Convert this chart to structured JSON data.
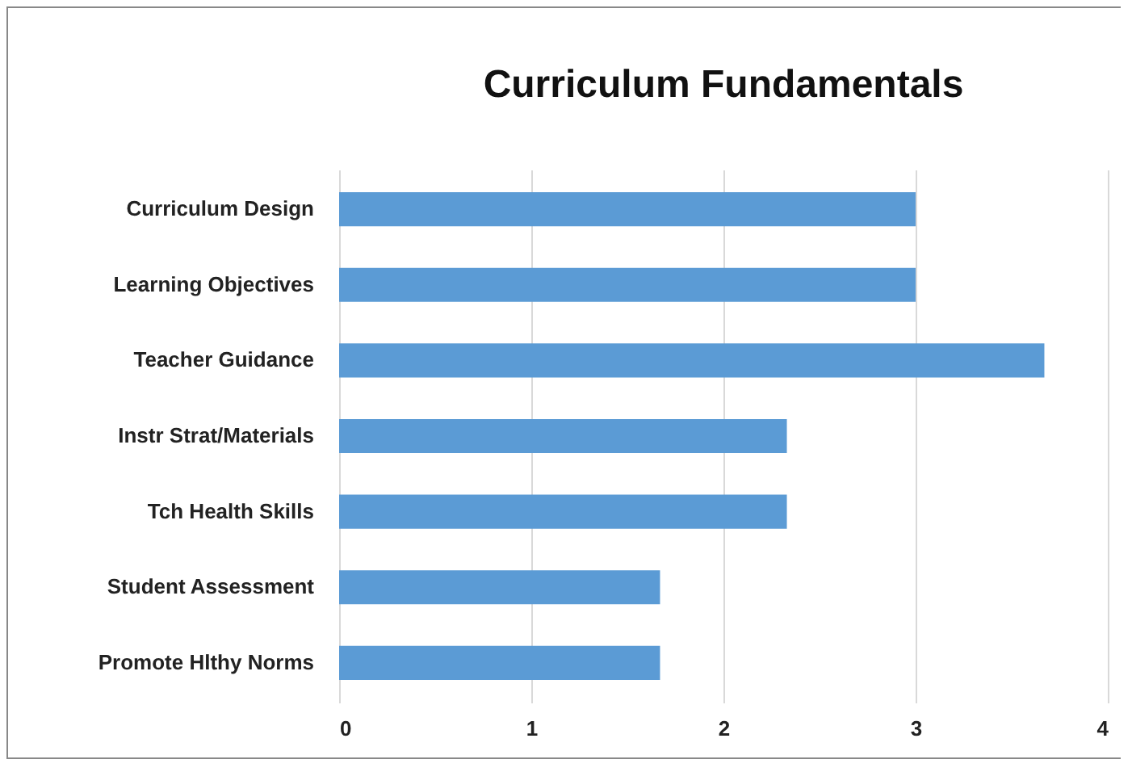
{
  "chart_data": {
    "type": "bar",
    "orientation": "horizontal",
    "title": "Curriculum Fundamentals",
    "categories": [
      "Curriculum Design",
      "Learning Objectives",
      "Teacher Guidance",
      "Instr Strat/Materials",
      "Tch Health Skills",
      "Student Assessment",
      "Promote Hlthy Norms"
    ],
    "values": [
      3,
      3,
      3.67,
      2.33,
      2.33,
      1.67,
      1.67
    ],
    "color": "#5b9bd5",
    "xlim": [
      0,
      4
    ],
    "xticks": [
      0,
      1,
      2,
      3,
      4
    ],
    "grid": "x"
  }
}
